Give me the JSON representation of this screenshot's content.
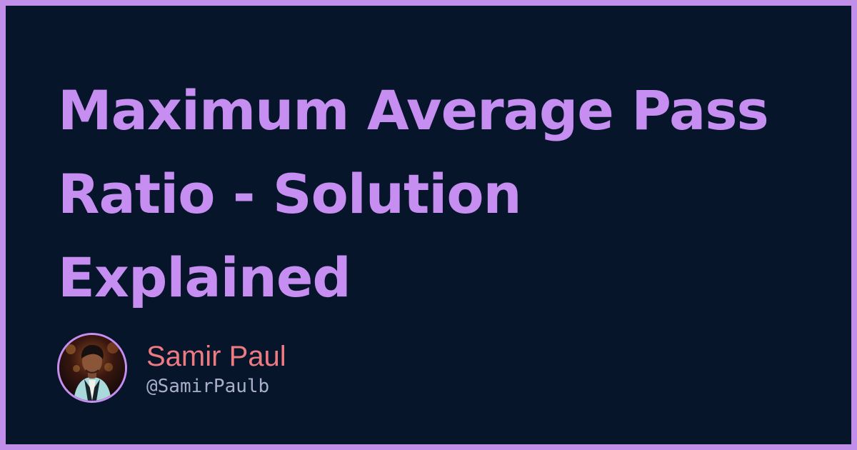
{
  "page": {
    "title_lines": [
      "Maximum Average Pass",
      "Ratio - Solution",
      "Explained"
    ]
  },
  "author": {
    "name": "Samir Paul",
    "handle": "@SamirPaulb",
    "avatar_icon": "author-avatar-portrait"
  },
  "colors": {
    "background": "#06152a",
    "border": "#c18ee9",
    "title": "#c58ef0",
    "author_name": "#ee7b82",
    "author_handle": "#a9aecb"
  }
}
